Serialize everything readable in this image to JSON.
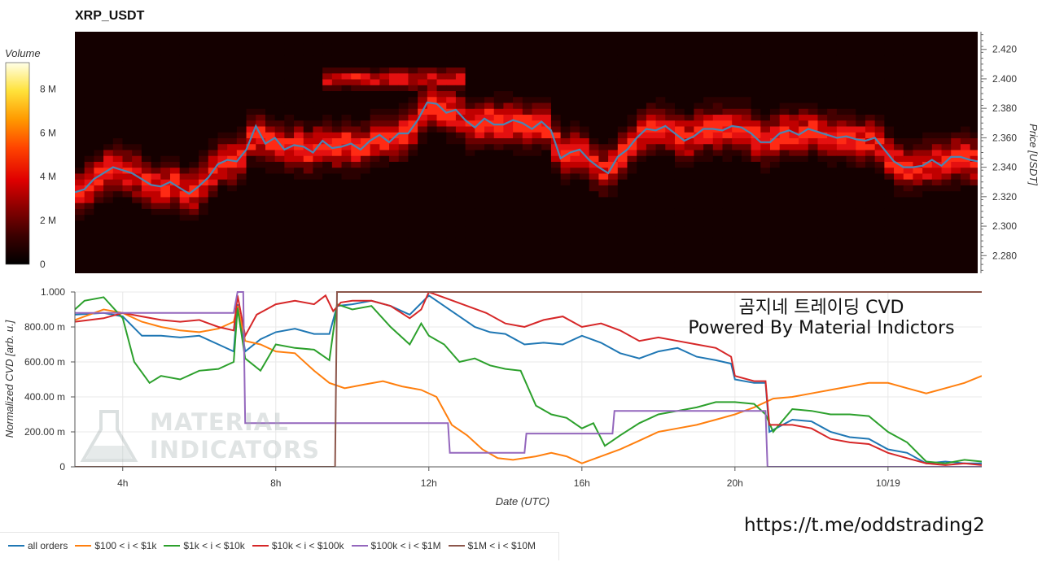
{
  "title": "XRP_USDT",
  "colorbar": {
    "title": "Volume",
    "ticks": [
      "8 M",
      "6 M",
      "4 M",
      "2 M",
      "0"
    ],
    "tick_values": [
      8,
      6,
      4,
      2,
      0
    ],
    "max": 9.2,
    "colors": [
      "#000000",
      "#3a0000",
      "#8a0000",
      "#e00000",
      "#ff4500",
      "#ff9a00",
      "#ffe23a",
      "#ffffe8"
    ]
  },
  "overlay": {
    "line1": "곰지네 트레이딩 CVD",
    "line2": "Powered By Material Indictors",
    "link": "https://t.me/oddstrading2"
  },
  "watermark": {
    "line1": "MATERIAL",
    "line2": "INDICATORS"
  },
  "chart_data": [
    {
      "type": "heatmap",
      "title": "XRP_USDT",
      "xlabel": "",
      "ylabel": "Price [USDT]",
      "x_ticks": [
        "4h",
        "8h",
        "12h",
        "16h",
        "20h",
        "10/19"
      ],
      "x_tick_hours": [
        4,
        8,
        12,
        16,
        20,
        24
      ],
      "xlim_hours": [
        2.75,
        26.45
      ],
      "ylim": [
        2.268,
        2.432
      ],
      "y_ticks": [
        "2.420",
        "2.400",
        "2.380",
        "2.360",
        "2.340",
        "2.320",
        "2.300",
        "2.280"
      ],
      "y_tick_values": [
        2.42,
        2.4,
        2.38,
        2.36,
        2.34,
        2.32,
        2.3,
        2.28
      ],
      "series": [
        {
          "name": "Price",
          "color": "#4a86b4",
          "hours": [
            2.75,
            3.0,
            3.25,
            3.5,
            3.75,
            4.0,
            4.25,
            4.5,
            4.75,
            5.0,
            5.25,
            5.5,
            5.75,
            6.0,
            6.25,
            6.5,
            6.75,
            7.0,
            7.25,
            7.5,
            7.75,
            8.0,
            8.25,
            8.5,
            8.75,
            9.0,
            9.25,
            9.5,
            9.75,
            10.0,
            10.25,
            10.5,
            10.75,
            11.0,
            11.25,
            11.5,
            11.75,
            12.0,
            12.25,
            12.5,
            12.75,
            13.0,
            13.25,
            13.5,
            13.75,
            14.0,
            14.25,
            14.5,
            14.75,
            15.0,
            15.25,
            15.5,
            15.75,
            16.0,
            16.25,
            16.5,
            16.75,
            17.0,
            17.25,
            17.5,
            17.75,
            18.0,
            18.25,
            18.5,
            18.75,
            19.0,
            19.25,
            19.5,
            19.75,
            20.0,
            20.25,
            20.5,
            20.75,
            21.0,
            21.25,
            21.5,
            21.75,
            22.0,
            22.25,
            22.5,
            22.75,
            23.0,
            23.25,
            23.5,
            23.75,
            24.0,
            24.25,
            24.5,
            24.75,
            25.0,
            25.25,
            25.5,
            25.75,
            26.0,
            26.25,
            26.45
          ],
          "values": [
            2.323,
            2.325,
            2.332,
            2.336,
            2.34,
            2.338,
            2.336,
            2.332,
            2.328,
            2.327,
            2.33,
            2.326,
            2.322,
            2.327,
            2.333,
            2.342,
            2.345,
            2.344,
            2.352,
            2.368,
            2.356,
            2.36,
            2.352,
            2.355,
            2.354,
            2.35,
            2.358,
            2.353,
            2.354,
            2.356,
            2.352,
            2.358,
            2.362,
            2.357,
            2.363,
            2.363,
            2.372,
            2.384,
            2.383,
            2.377,
            2.379,
            2.372,
            2.367,
            2.373,
            2.369,
            2.369,
            2.372,
            2.37,
            2.366,
            2.371,
            2.365,
            2.346,
            2.35,
            2.352,
            2.345,
            2.34,
            2.336,
            2.347,
            2.352,
            2.36,
            2.366,
            2.365,
            2.368,
            2.363,
            2.358,
            2.361,
            2.366,
            2.366,
            2.365,
            2.368,
            2.367,
            2.363,
            2.357,
            2.357,
            2.363,
            2.365,
            2.362,
            2.366,
            2.364,
            2.362,
            2.36,
            2.361,
            2.359,
            2.358,
            2.36,
            2.352,
            2.344,
            2.34,
            2.34,
            2.341,
            2.345,
            2.341,
            2.347,
            2.347,
            2.345,
            2.344
          ]
        }
      ],
      "bands": [
        {
          "hours": [
            9.8,
            10.3,
            10.8,
            11.3,
            11.8,
            12.3
          ],
          "center": [
            2.4,
            2.4,
            2.4,
            2.4,
            2.4,
            2.4
          ]
        }
      ]
    },
    {
      "type": "line",
      "xlabel": "Date (UTC)",
      "ylabel": "Normalized CVD [arb. u.]",
      "ylim": [
        0,
        1
      ],
      "y_ticks": [
        "1.000",
        "800.00 m",
        "600.00 m",
        "400.00 m",
        "200.00 m",
        "0"
      ],
      "y_tick_values": [
        1.0,
        0.8,
        0.6,
        0.4,
        0.2,
        0.0
      ],
      "x_ticks": [
        "4h",
        "8h",
        "12h",
        "16h",
        "20h",
        "10/19"
      ],
      "x_tick_hours": [
        4,
        8,
        12,
        16,
        20,
        24
      ],
      "xlim_hours": [
        2.75,
        26.45
      ],
      "legend_position": "bottom-left",
      "series": [
        {
          "name": "all orders",
          "color": "#1f77b4",
          "hours": [
            2.75,
            3.5,
            4.0,
            4.5,
            5.0,
            5.5,
            6.0,
            6.5,
            6.9,
            7.0,
            7.2,
            7.6,
            8.0,
            8.5,
            9.0,
            9.4,
            9.6,
            10.0,
            10.5,
            11.0,
            11.5,
            12.0,
            12.4,
            12.8,
            13.2,
            13.6,
            14.0,
            14.5,
            15.0,
            15.5,
            16.0,
            16.5,
            17.0,
            17.5,
            18.0,
            18.5,
            19.0,
            19.5,
            19.9,
            20.0,
            20.5,
            20.8,
            20.9,
            21.5,
            22.0,
            22.5,
            23.0,
            23.5,
            24.0,
            24.5,
            25.0,
            25.5,
            26.0,
            26.45
          ],
          "values": [
            0.87,
            0.88,
            0.86,
            0.75,
            0.75,
            0.74,
            0.75,
            0.7,
            0.66,
            0.93,
            0.66,
            0.73,
            0.77,
            0.79,
            0.76,
            0.76,
            0.92,
            0.93,
            0.95,
            0.92,
            0.87,
            0.98,
            0.92,
            0.86,
            0.8,
            0.77,
            0.76,
            0.7,
            0.71,
            0.7,
            0.75,
            0.71,
            0.65,
            0.62,
            0.66,
            0.68,
            0.63,
            0.61,
            0.59,
            0.5,
            0.48,
            0.48,
            0.2,
            0.27,
            0.26,
            0.2,
            0.17,
            0.16,
            0.1,
            0.08,
            0.02,
            0.03,
            0.02,
            0.02
          ]
        },
        {
          "name": "$100 < i < $1k",
          "color": "#ff7f0e",
          "hours": [
            2.75,
            3.5,
            4.0,
            4.5,
            5.0,
            5.5,
            6.0,
            6.5,
            6.9,
            7.0,
            7.2,
            7.6,
            8.0,
            8.5,
            9.0,
            9.4,
            9.8,
            10.3,
            10.8,
            11.3,
            11.8,
            12.2,
            12.6,
            13.0,
            13.4,
            13.8,
            14.2,
            14.8,
            15.2,
            15.6,
            16.0,
            16.5,
            17.0,
            17.5,
            18.0,
            18.5,
            19.0,
            19.5,
            20.0,
            20.5,
            21.0,
            21.5,
            22.0,
            22.5,
            23.0,
            23.5,
            24.0,
            24.5,
            25.0,
            25.5,
            26.0,
            26.45
          ],
          "values": [
            0.84,
            0.9,
            0.88,
            0.83,
            0.8,
            0.78,
            0.77,
            0.79,
            0.83,
            0.92,
            0.72,
            0.7,
            0.66,
            0.65,
            0.55,
            0.48,
            0.45,
            0.47,
            0.49,
            0.46,
            0.44,
            0.4,
            0.24,
            0.18,
            0.1,
            0.05,
            0.04,
            0.06,
            0.08,
            0.06,
            0.02,
            0.06,
            0.1,
            0.15,
            0.2,
            0.22,
            0.24,
            0.27,
            0.3,
            0.34,
            0.39,
            0.4,
            0.42,
            0.44,
            0.46,
            0.48,
            0.48,
            0.45,
            0.42,
            0.45,
            0.48,
            0.52
          ]
        },
        {
          "name": "$1k < i < $10k",
          "color": "#2ca02c",
          "hours": [
            2.75,
            3.0,
            3.5,
            4.0,
            4.3,
            4.7,
            5.0,
            5.5,
            6.0,
            6.5,
            6.9,
            7.0,
            7.2,
            7.6,
            8.0,
            8.5,
            9.0,
            9.4,
            9.6,
            10.0,
            10.5,
            11.0,
            11.5,
            11.8,
            12.0,
            12.4,
            12.8,
            13.2,
            13.6,
            14.0,
            14.4,
            14.8,
            15.2,
            15.6,
            16.0,
            16.3,
            16.6,
            16.8,
            17.0,
            17.5,
            18.0,
            18.5,
            19.0,
            19.5,
            20.0,
            20.5,
            20.8,
            21.0,
            21.5,
            22.0,
            22.5,
            23.0,
            23.5,
            24.0,
            24.5,
            25.0,
            25.5,
            26.0,
            26.45
          ],
          "values": [
            0.9,
            0.95,
            0.97,
            0.85,
            0.6,
            0.48,
            0.52,
            0.5,
            0.55,
            0.56,
            0.6,
            0.91,
            0.62,
            0.55,
            0.7,
            0.68,
            0.67,
            0.61,
            0.93,
            0.9,
            0.92,
            0.8,
            0.7,
            0.82,
            0.75,
            0.7,
            0.6,
            0.62,
            0.58,
            0.56,
            0.55,
            0.35,
            0.3,
            0.28,
            0.22,
            0.25,
            0.12,
            0.15,
            0.18,
            0.25,
            0.3,
            0.32,
            0.34,
            0.37,
            0.37,
            0.36,
            0.3,
            0.2,
            0.33,
            0.32,
            0.3,
            0.3,
            0.29,
            0.2,
            0.14,
            0.03,
            0.02,
            0.04,
            0.03
          ]
        },
        {
          "name": "$10k < i < $100k",
          "color": "#d62728",
          "hours": [
            2.75,
            3.5,
            4.0,
            4.5,
            5.0,
            5.5,
            6.0,
            6.5,
            6.9,
            7.0,
            7.2,
            7.5,
            8.0,
            8.5,
            9.0,
            9.3,
            9.5,
            9.7,
            10.0,
            10.5,
            11.0,
            11.5,
            11.8,
            12.0,
            12.5,
            13.0,
            13.5,
            14.0,
            14.5,
            15.0,
            15.5,
            16.0,
            16.5,
            17.0,
            17.5,
            18.0,
            18.5,
            19.0,
            19.5,
            19.9,
            20.0,
            20.5,
            20.8,
            20.9,
            21.5,
            22.0,
            22.5,
            23.0,
            23.5,
            24.0,
            24.5,
            25.0,
            25.5,
            26.0,
            26.45
          ],
          "values": [
            0.83,
            0.85,
            0.88,
            0.86,
            0.84,
            0.83,
            0.84,
            0.8,
            0.78,
            0.98,
            0.75,
            0.87,
            0.93,
            0.95,
            0.93,
            0.98,
            0.89,
            0.94,
            0.95,
            0.95,
            0.92,
            0.85,
            0.9,
            1.0,
            0.96,
            0.92,
            0.88,
            0.82,
            0.8,
            0.84,
            0.86,
            0.8,
            0.82,
            0.78,
            0.72,
            0.74,
            0.72,
            0.7,
            0.68,
            0.63,
            0.52,
            0.49,
            0.49,
            0.24,
            0.24,
            0.22,
            0.16,
            0.14,
            0.13,
            0.08,
            0.05,
            0.02,
            0.01,
            0.02,
            0.01
          ]
        },
        {
          "name": "$100k < i < $1M",
          "color": "#9467bd",
          "hours": [
            2.75,
            6.9,
            7.0,
            7.15,
            7.2,
            12.5,
            12.55,
            14.5,
            14.55,
            16.8,
            16.85,
            20.8,
            20.85,
            26.45
          ],
          "values": [
            0.88,
            0.88,
            1.0,
            1.0,
            0.25,
            0.25,
            0.08,
            0.08,
            0.19,
            0.19,
            0.32,
            0.32,
            0.0,
            0.0
          ]
        },
        {
          "name": "$1M < i < $10M",
          "color": "#8c564b",
          "hours": [
            2.75,
            9.55,
            9.6,
            26.45
          ],
          "values": [
            0.0,
            0.0,
            1.0,
            1.0
          ]
        }
      ]
    }
  ]
}
